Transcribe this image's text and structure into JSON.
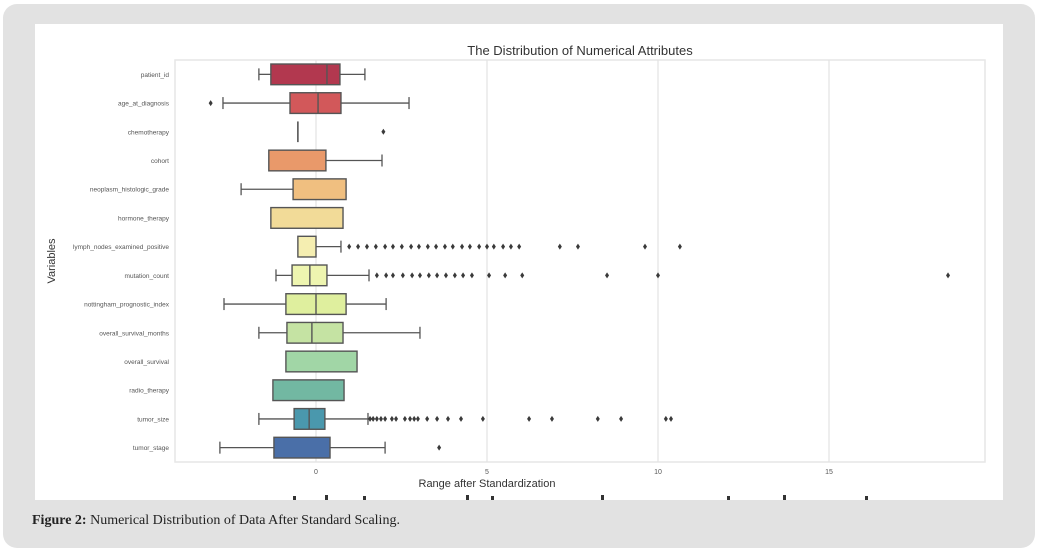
{
  "caption": {
    "label": "Figure 2:",
    "text": " Numerical Distribution of Data After Standard Scaling."
  },
  "chart_data": {
    "type": "boxplot",
    "title": "The Distribution of Numerical Attributes",
    "xlabel": "Range after Standardization",
    "ylabel": "Variables",
    "xlim": [
      -4.2,
      19.6
    ],
    "xticks": [
      0,
      5,
      10,
      15
    ],
    "xtick_labels": [
      "0",
      "5",
      "10",
      "15"
    ],
    "grid": true,
    "orientation": "horizontal",
    "series": [
      {
        "name": "patient_id",
        "color": "#b2384f",
        "whislo": -1.67,
        "q1": -1.32,
        "med": 0.32,
        "q3": 0.7,
        "whishi": 1.43,
        "fliers": []
      },
      {
        "name": "age_at_diagnosis",
        "color": "#d2585a",
        "whislo": -2.72,
        "q1": -0.76,
        "med": 0.06,
        "q3": 0.73,
        "whishi": 2.72,
        "fliers": [
          -3.08
        ]
      },
      {
        "name": "chemotherapy",
        "color": "#e2734f",
        "whislo": -0.53,
        "q1": -0.53,
        "med": -0.53,
        "q3": -0.53,
        "whishi": -0.53,
        "fliers": [
          1.97
        ]
      },
      {
        "name": "cohort",
        "color": "#e9996a",
        "whislo": -1.38,
        "q1": -1.38,
        "med": 0.29,
        "q3": 0.29,
        "whishi": 1.93,
        "fliers": []
      },
      {
        "name": "neoplasm_histologic_grade",
        "color": "#f0bf80",
        "whislo": -2.19,
        "q1": -0.67,
        "med": 0.88,
        "q3": 0.88,
        "whishi": 0.88,
        "fliers": []
      },
      {
        "name": "hormone_therapy",
        "color": "#f2db98",
        "whislo": -1.32,
        "q1": -1.32,
        "med": 0.79,
        "q3": 0.79,
        "whishi": 0.79,
        "fliers": []
      },
      {
        "name": "lymph_nodes_examined_positive",
        "color": "#f5eeb1",
        "whislo": -0.53,
        "q1": -0.53,
        "med": -0.53,
        "q3": 0.0,
        "whishi": 0.73,
        "fliers": [
          0.97,
          1.23,
          1.49,
          1.75,
          2.02,
          2.25,
          2.51,
          2.78,
          3.01,
          3.27,
          3.51,
          3.77,
          4.0,
          4.27,
          4.5,
          4.77,
          5.0,
          5.2,
          5.47,
          5.7,
          5.94,
          7.13,
          7.66,
          9.62,
          10.64
        ]
      },
      {
        "name": "mutation_count",
        "color": "#eef5b0",
        "whislo": -1.17,
        "q1": -0.7,
        "med": -0.18,
        "q3": 0.32,
        "whishi": 1.55,
        "fliers": [
          1.78,
          2.05,
          2.25,
          2.54,
          2.81,
          3.04,
          3.3,
          3.54,
          3.8,
          4.06,
          4.3,
          4.56,
          5.06,
          5.53,
          6.03,
          8.51,
          10.0,
          18.48
        ]
      },
      {
        "name": "nottingham_prognostic_index",
        "color": "#dfef9e",
        "whislo": -2.69,
        "q1": -0.88,
        "med": 0.0,
        "q3": 0.88,
        "whishi": 2.05,
        "fliers": []
      },
      {
        "name": "overall_survival_months",
        "color": "#c5e3a3",
        "whislo": -1.67,
        "q1": -0.85,
        "med": -0.12,
        "q3": 0.79,
        "whishi": 3.04,
        "fliers": []
      },
      {
        "name": "overall_survival",
        "color": "#a1d6a6",
        "whislo": -0.88,
        "q1": -0.88,
        "med": 1.2,
        "q3": 1.2,
        "whishi": 1.2,
        "fliers": []
      },
      {
        "name": "radio_therapy",
        "color": "#72b8a2",
        "whislo": -1.26,
        "q1": -1.26,
        "med": 0.82,
        "q3": 0.82,
        "whishi": 0.82,
        "fliers": []
      },
      {
        "name": "tumor_size",
        "color": "#4a98ad",
        "whislo": -1.67,
        "q1": -0.64,
        "med": -0.2,
        "q3": 0.26,
        "whishi": 1.52,
        "fliers": [
          1.58,
          1.67,
          1.78,
          1.9,
          2.02,
          2.22,
          2.34,
          2.6,
          2.75,
          2.87,
          2.98,
          3.25,
          3.54,
          3.86,
          4.24,
          4.88,
          6.23,
          6.9,
          8.24,
          8.92,
          10.23,
          10.38
        ]
      },
      {
        "name": "tumor_stage",
        "color": "#4a6fa8",
        "whislo": -2.81,
        "q1": -1.23,
        "med": 0.41,
        "q3": 0.41,
        "whishi": 2.02,
        "fliers": [
          3.6
        ]
      }
    ]
  }
}
